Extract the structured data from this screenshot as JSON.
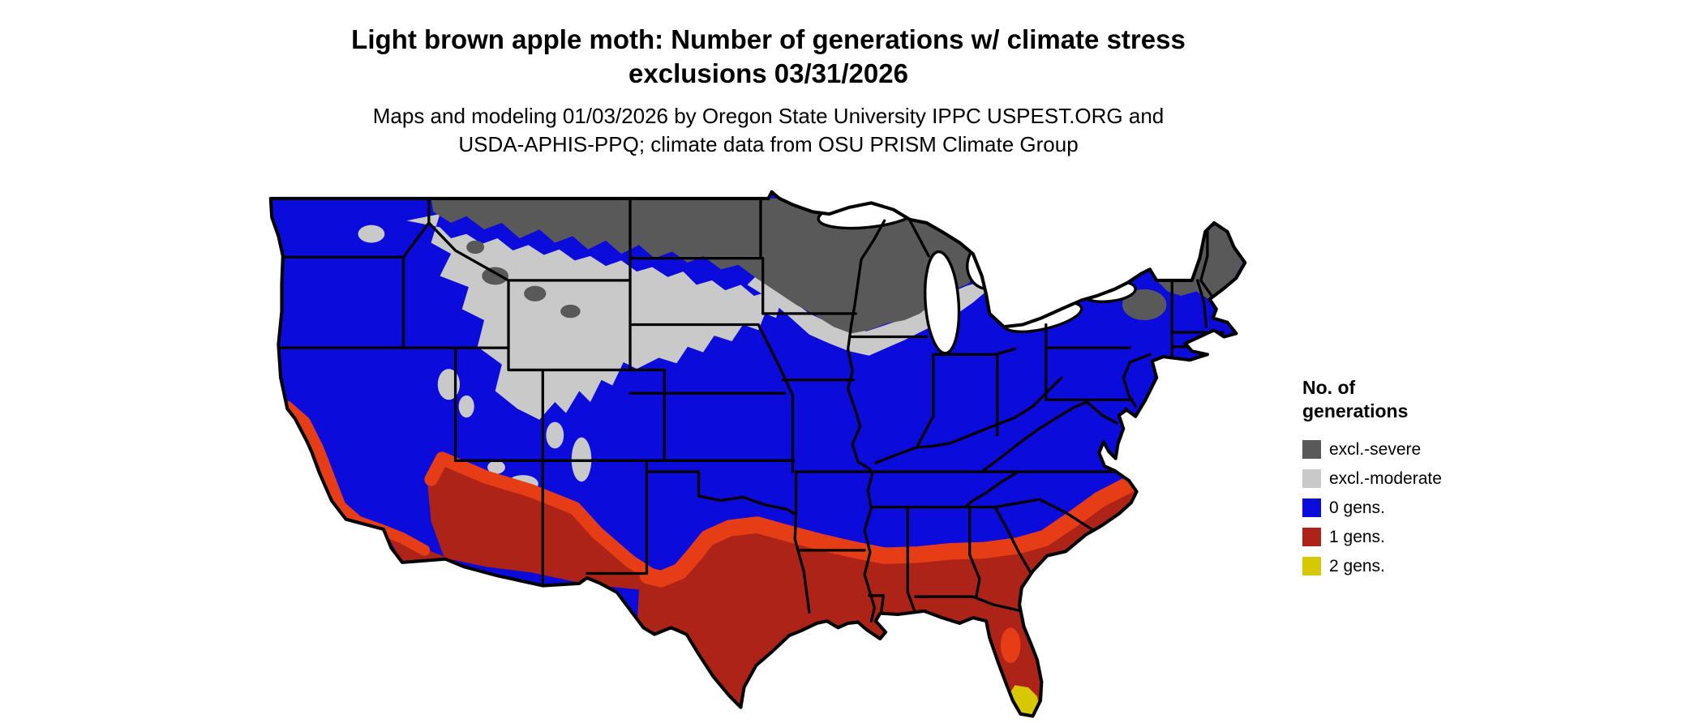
{
  "title": {
    "line1": "Light brown apple moth: Number of generations w/ climate stress",
    "line2": "exclusions 03/31/2026"
  },
  "subtitle": {
    "line1": "Maps and modeling 01/03/2026 by Oregon State University IPPC USPEST.ORG and",
    "line2": "USDA-APHIS-PPQ; climate data from OSU PRISM Climate Group"
  },
  "legend": {
    "title": {
      "line1": "No. of",
      "line2": "generations"
    },
    "items": [
      {
        "key": "severe",
        "label": "excl.-severe",
        "color": "#595959"
      },
      {
        "key": "moderate",
        "label": "excl.-moderate",
        "color": "#c9c9c9"
      },
      {
        "key": "zero",
        "label": "0 gens.",
        "color": "#0b0bdb"
      },
      {
        "key": "one",
        "label": "1 gens.",
        "color": "#ad2317"
      },
      {
        "key": "two",
        "label": "2 gens.",
        "color": "#d8c800"
      }
    ]
  },
  "map": {
    "type": "choropleth-raster",
    "region": "Continental United States with state boundaries",
    "colors": {
      "severe": "#595959",
      "moderate": "#c9c9c9",
      "zero": "#0b0bdb",
      "one": "#ad2317",
      "one_edge": "#e63d17",
      "two": "#d8c800",
      "water": "#ffffff",
      "border": "#000000"
    },
    "regions": [
      {
        "class": "excl.-severe",
        "areas": "Northern Plains (ND, MN, WI, upper MI), northeastern Montana, Adirondacks, northern New England and Maine"
      },
      {
        "class": "excl.-moderate",
        "areas": "Northern Rockies, Montana, Idaho, Wyoming, western Dakotas and Nebraska, Colorado high country, band south of the severe zone through the upper Midwest"
      },
      {
        "class": "0 gens.",
        "areas": "Pacific Northwest, Great Basin, central Plains, Midwest, Ohio Valley, Mid-Atlantic and Northeast coast"
      },
      {
        "class": "1 gens.",
        "areas": "Coastal and valley California, southern Arizona and New Mexico, Texas, Gulf Coast, Deep South, Florida, southern Atlantic coast"
      },
      {
        "class": "2 gens.",
        "areas": "Southern tip of Florida"
      }
    ]
  }
}
